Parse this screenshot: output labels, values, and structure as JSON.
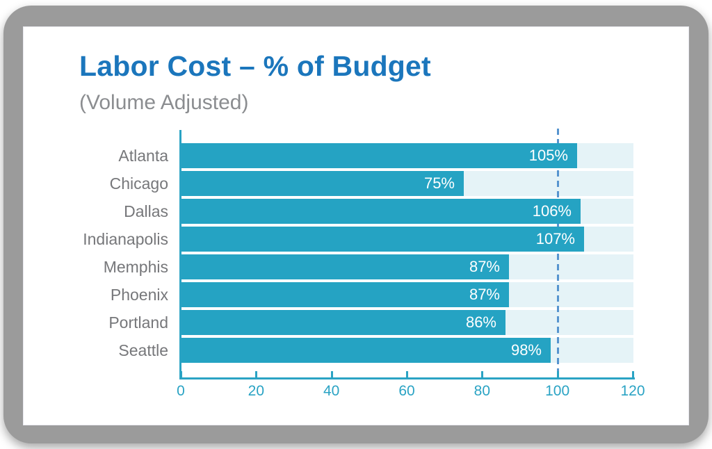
{
  "card": {
    "title": "Labor Cost – % of Budget",
    "subtitle": "(Volume Adjusted)"
  },
  "colors": {
    "title": "#1b76bc",
    "subtitle": "#8b8d90",
    "bar": "#25a3c3",
    "track": "#e5f3f7",
    "axis": "#2aa3c4",
    "category_label": "#76777a",
    "value_label": "#ffffff",
    "reference_line": "#5694cf",
    "frame": "#9b9b9b"
  },
  "chart_data": {
    "type": "bar",
    "orientation": "horizontal",
    "title": "Labor Cost – % of Budget",
    "subtitle": "(Volume Adjusted)",
    "categories": [
      "Atlanta",
      "Chicago",
      "Dallas",
      "Indianapolis",
      "Memphis",
      "Phoenix",
      "Portland",
      "Seattle"
    ],
    "values": [
      105,
      75,
      106,
      107,
      87,
      87,
      86,
      98
    ],
    "value_labels": [
      "105%",
      "75%",
      "106%",
      "107%",
      "87%",
      "87%",
      "86%",
      "98%"
    ],
    "xlim": [
      0,
      120
    ],
    "x_ticks": [
      0,
      20,
      40,
      60,
      80,
      100,
      120
    ],
    "reference_line_x": 100,
    "grid": false,
    "legend": false,
    "track_background": true
  }
}
